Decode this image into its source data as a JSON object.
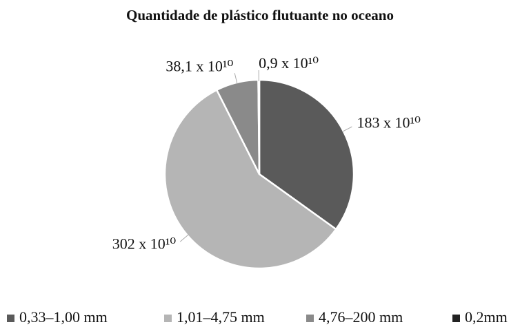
{
  "chart_data": {
    "type": "pie",
    "title": "Quantidade de plástico flutuante no oceano",
    "categories": [
      "0,33–1,00 mm",
      "1,01–4,75 mm",
      "4,76–200 mm",
      "0,2mm"
    ],
    "values": [
      1830000000000,
      3020000000000,
      381000000000,
      9000000000
    ],
    "value_labels": [
      "183 x 10¹⁰",
      "302 x 10¹⁰",
      "38,1 x 10¹⁰",
      "0,9 x 10¹⁰"
    ],
    "colors": [
      "#5a5a5a",
      "#b5b5b5",
      "#8a8a8a",
      "#222222"
    ],
    "legend": "bottom"
  }
}
